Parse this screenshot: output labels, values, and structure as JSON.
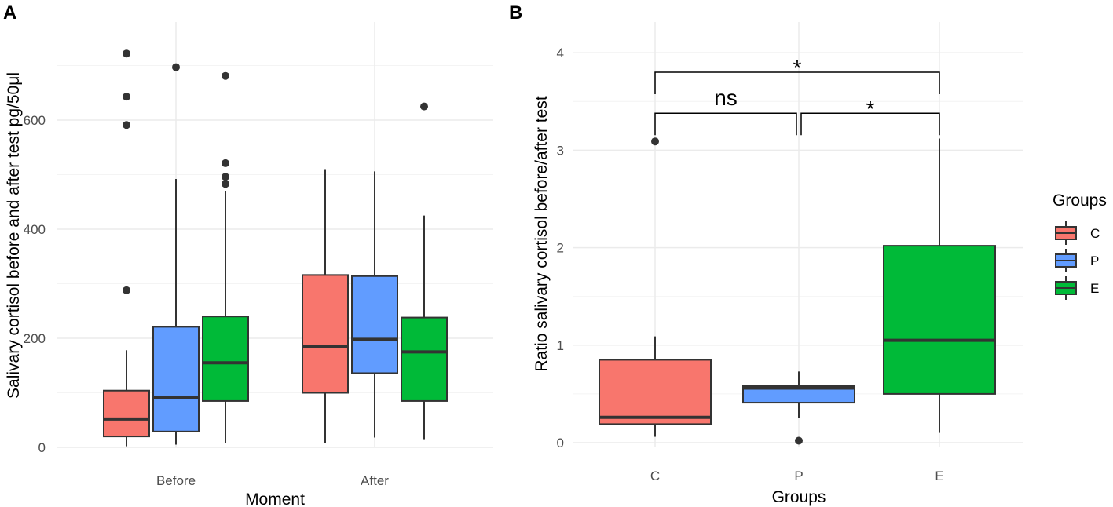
{
  "panels": {
    "A": {
      "label": "A",
      "chart_data": {
        "type": "boxplot",
        "xlabel": "Moment",
        "ylabel": "Salivary cortisol before and after test pg/50μl",
        "ylim": [
          0,
          720
        ],
        "yticks": [
          0,
          200,
          400,
          600
        ],
        "categories": [
          "Before",
          "After"
        ],
        "groups": [
          "C",
          "P",
          "E"
        ],
        "boxes": [
          {
            "category": "Before",
            "group": "C",
            "min": 2,
            "q1": 20,
            "median": 52,
            "q3": 104,
            "max": 178,
            "outliers": [
              288,
              591,
              643,
              722
            ]
          },
          {
            "category": "Before",
            "group": "P",
            "min": 5,
            "q1": 29,
            "median": 91,
            "q3": 221,
            "max": 492,
            "outliers": [
              697
            ]
          },
          {
            "category": "Before",
            "group": "E",
            "min": 8,
            "q1": 85,
            "median": 155,
            "q3": 240,
            "max": 470,
            "outliers": [
              483,
              496,
              521,
              681
            ]
          },
          {
            "category": "After",
            "group": "C",
            "min": 8,
            "q1": 100,
            "median": 185,
            "q3": 316,
            "max": 510,
            "outliers": []
          },
          {
            "category": "After",
            "group": "P",
            "min": 18,
            "q1": 136,
            "median": 198,
            "q3": 314,
            "max": 506,
            "outliers": []
          },
          {
            "category": "After",
            "group": "E",
            "min": 15,
            "q1": 85,
            "median": 175,
            "q3": 238,
            "max": 425,
            "outliers": [
              625
            ]
          }
        ]
      }
    },
    "B": {
      "label": "B",
      "chart_data": {
        "type": "boxplot",
        "xlabel": "Groups",
        "ylabel": "Ratio salivary cortisol before/after test",
        "ylim": [
          0,
          4
        ],
        "yticks": [
          0,
          1,
          2,
          3,
          4
        ],
        "categories": [
          "C",
          "P",
          "E"
        ],
        "boxes": [
          {
            "category": "C",
            "group": "C",
            "min": 0.06,
            "q1": 0.19,
            "median": 0.26,
            "q3": 0.85,
            "max": 1.09,
            "outliers": [
              3.09
            ]
          },
          {
            "category": "P",
            "group": "P",
            "min": 0.25,
            "q1": 0.41,
            "median": 0.56,
            "q3": 0.58,
            "max": 0.73,
            "outliers": [
              0.02
            ]
          },
          {
            "category": "E",
            "group": "E",
            "min": 0.1,
            "q1": 0.5,
            "median": 1.05,
            "q3": 2.02,
            "max": 3.12,
            "outliers": []
          }
        ],
        "annotations": [
          {
            "from": "C",
            "to": "E",
            "label": "*",
            "y": 3.8
          },
          {
            "from": "C",
            "to": "P",
            "label": "ns",
            "y": 3.38
          },
          {
            "from": "P",
            "to": "E",
            "label": "*",
            "y": 3.38
          }
        ]
      }
    }
  },
  "legend": {
    "title": "Groups",
    "items": [
      {
        "label": "C",
        "color": "#F8766D"
      },
      {
        "label": "P",
        "color": "#619CFF"
      },
      {
        "label": "E",
        "color": "#00BA38"
      }
    ]
  }
}
